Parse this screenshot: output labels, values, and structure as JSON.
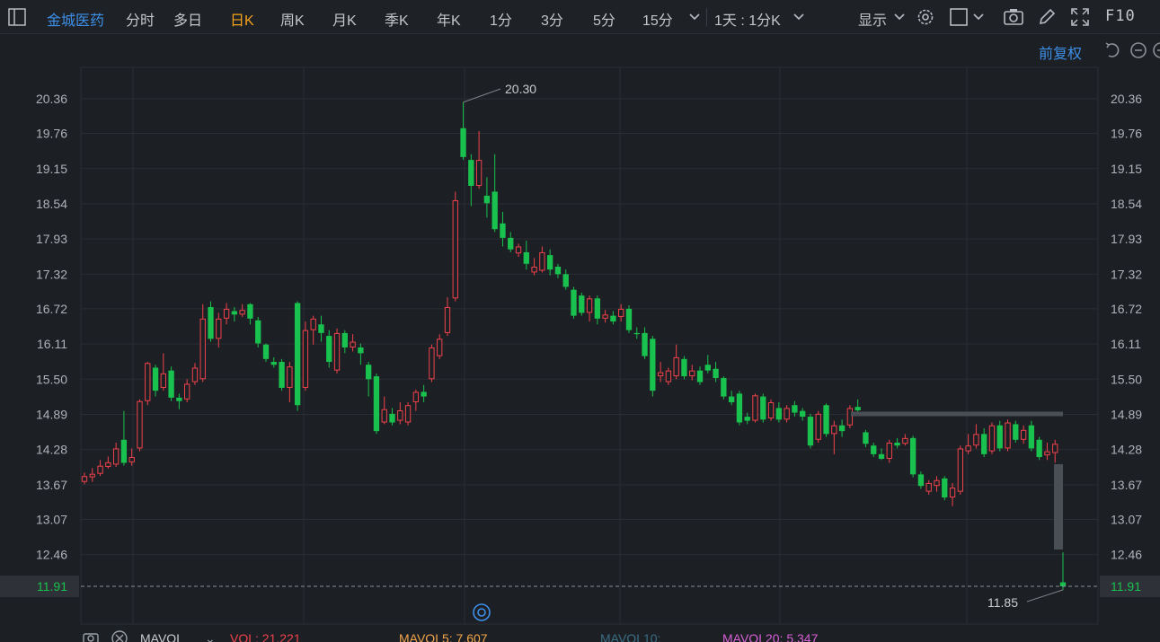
{
  "toolbar": {
    "stock_name": "金城医药",
    "tabs": [
      "分时",
      "多日",
      "日K",
      "周K",
      "月K",
      "季K",
      "年K",
      "1分",
      "3分",
      "5分",
      "15分"
    ],
    "active_tab": "日K",
    "interval_select": "1天 : 1分K",
    "display_label": "显示",
    "f10_label": "F10"
  },
  "adjust_label": "前复权",
  "bottom_bar": {
    "mavol_label": "MAVOL",
    "vol": "VOL: 21.221",
    "mavol5": "MAVOL5: 7.607",
    "mavol10": "MAVOL10:",
    "mavol20": "MAVOL20: 5.347"
  },
  "colors": {
    "up": "#f0424c",
    "down": "#19c14e",
    "active_tab": "#f7a21b",
    "link": "#3d8fe8",
    "mavol5": "#f2a54b",
    "mavol10": "#3a6f86",
    "mavol20": "#d660d6"
  },
  "chart_data": {
    "type": "candlestick",
    "y_ticks": [
      "20.36",
      "19.76",
      "19.15",
      "18.54",
      "17.93",
      "17.32",
      "16.72",
      "16.11",
      "15.50",
      "14.89",
      "14.28",
      "13.67",
      "13.07",
      "12.46"
    ],
    "last_price": "11.91",
    "high_annotation": "20.30",
    "low_annotation": "11.85",
    "ylim": [
      11.6,
      20.9
    ],
    "candles": [
      {
        "o": 13.72,
        "c": 13.82,
        "h": 13.88,
        "l": 13.68
      },
      {
        "o": 13.8,
        "c": 13.86,
        "h": 13.96,
        "l": 13.72
      },
      {
        "o": 13.86,
        "c": 14.0,
        "h": 14.1,
        "l": 13.82
      },
      {
        "o": 13.98,
        "c": 14.06,
        "h": 14.16,
        "l": 13.95
      },
      {
        "o": 14.02,
        "c": 14.3,
        "h": 14.4,
        "l": 13.98
      },
      {
        "o": 14.45,
        "c": 14.05,
        "h": 14.95,
        "l": 14.0
      },
      {
        "o": 14.06,
        "c": 14.15,
        "h": 14.3,
        "l": 14.0
      },
      {
        "o": 14.3,
        "c": 15.12,
        "h": 15.15,
        "l": 14.25
      },
      {
        "o": 15.12,
        "c": 15.78,
        "h": 15.8,
        "l": 15.05
      },
      {
        "o": 15.7,
        "c": 15.3,
        "h": 15.75,
        "l": 15.2
      },
      {
        "o": 15.35,
        "c": 15.6,
        "h": 15.95,
        "l": 15.3
      },
      {
        "o": 15.65,
        "c": 15.18,
        "h": 15.72,
        "l": 15.12
      },
      {
        "o": 15.18,
        "c": 15.12,
        "h": 15.25,
        "l": 14.98
      },
      {
        "o": 15.15,
        "c": 15.42,
        "h": 15.5,
        "l": 15.1
      },
      {
        "o": 15.45,
        "c": 15.7,
        "h": 15.78,
        "l": 15.4
      },
      {
        "o": 15.5,
        "c": 16.55,
        "h": 16.8,
        "l": 15.45
      },
      {
        "o": 16.75,
        "c": 16.2,
        "h": 16.85,
        "l": 16.15
      },
      {
        "o": 16.2,
        "c": 16.55,
        "h": 16.65,
        "l": 16.05
      },
      {
        "o": 16.55,
        "c": 16.72,
        "h": 16.82,
        "l": 16.45
      },
      {
        "o": 16.68,
        "c": 16.62,
        "h": 16.75,
        "l": 16.5
      },
      {
        "o": 16.62,
        "c": 16.7,
        "h": 16.8,
        "l": 16.58
      },
      {
        "o": 16.8,
        "c": 16.55,
        "h": 16.82,
        "l": 16.45
      },
      {
        "o": 16.52,
        "c": 16.12,
        "h": 16.58,
        "l": 16.05
      },
      {
        "o": 16.1,
        "c": 15.85,
        "h": 16.12,
        "l": 15.8
      },
      {
        "o": 15.8,
        "c": 15.75,
        "h": 15.88,
        "l": 15.7
      },
      {
        "o": 15.8,
        "c": 15.35,
        "h": 15.85,
        "l": 15.3
      },
      {
        "o": 15.35,
        "c": 15.72,
        "h": 15.8,
        "l": 15.1
      },
      {
        "o": 16.82,
        "c": 15.05,
        "h": 16.85,
        "l": 14.95
      },
      {
        "o": 15.35,
        "c": 16.35,
        "h": 16.5,
        "l": 15.3
      },
      {
        "o": 16.35,
        "c": 16.55,
        "h": 16.6,
        "l": 16.1
      },
      {
        "o": 16.45,
        "c": 16.3,
        "h": 16.6,
        "l": 16.15
      },
      {
        "o": 16.25,
        "c": 15.8,
        "h": 16.35,
        "l": 15.7
      },
      {
        "o": 15.65,
        "c": 16.3,
        "h": 16.38,
        "l": 15.6
      },
      {
        "o": 16.3,
        "c": 16.05,
        "h": 16.35,
        "l": 15.95
      },
      {
        "o": 16.05,
        "c": 16.15,
        "h": 16.28,
        "l": 15.98
      },
      {
        "o": 16.05,
        "c": 15.95,
        "h": 16.12,
        "l": 15.75
      },
      {
        "o": 15.75,
        "c": 15.5,
        "h": 15.8,
        "l": 15.2
      },
      {
        "o": 15.55,
        "c": 14.6,
        "h": 15.6,
        "l": 14.55
      },
      {
        "o": 14.75,
        "c": 14.98,
        "h": 15.2,
        "l": 14.72
      },
      {
        "o": 14.9,
        "c": 14.75,
        "h": 15.0,
        "l": 14.7
      },
      {
        "o": 14.78,
        "c": 14.96,
        "h": 15.1,
        "l": 14.72
      },
      {
        "o": 14.75,
        "c": 15.05,
        "h": 15.1,
        "l": 14.7
      },
      {
        "o": 15.1,
        "c": 15.28,
        "h": 15.32,
        "l": 14.95
      },
      {
        "o": 15.28,
        "c": 15.2,
        "h": 15.4,
        "l": 15.1
      },
      {
        "o": 15.5,
        "c": 16.05,
        "h": 16.1,
        "l": 15.45
      },
      {
        "o": 15.9,
        "c": 16.2,
        "h": 16.28,
        "l": 15.85
      },
      {
        "o": 16.3,
        "c": 16.75,
        "h": 16.92,
        "l": 16.25
      },
      {
        "o": 16.9,
        "c": 18.6,
        "h": 18.75,
        "l": 16.85
      },
      {
        "o": 19.85,
        "c": 19.35,
        "h": 20.3,
        "l": 19.3
      },
      {
        "o": 19.3,
        "c": 18.85,
        "h": 19.4,
        "l": 18.5
      },
      {
        "o": 18.85,
        "c": 19.3,
        "h": 19.8,
        "l": 18.8
      },
      {
        "o": 18.68,
        "c": 18.55,
        "h": 19.0,
        "l": 18.3
      },
      {
        "o": 18.75,
        "c": 18.1,
        "h": 19.4,
        "l": 18.05
      },
      {
        "o": 18.2,
        "c": 17.95,
        "h": 18.4,
        "l": 17.8
      },
      {
        "o": 17.95,
        "c": 17.75,
        "h": 18.05,
        "l": 17.7
      },
      {
        "o": 17.68,
        "c": 17.8,
        "h": 17.85,
        "l": 17.62
      },
      {
        "o": 17.7,
        "c": 17.5,
        "h": 17.9,
        "l": 17.4
      },
      {
        "o": 17.35,
        "c": 17.45,
        "h": 17.6,
        "l": 17.3
      },
      {
        "o": 17.38,
        "c": 17.7,
        "h": 17.8,
        "l": 17.35
      },
      {
        "o": 17.65,
        "c": 17.4,
        "h": 17.75,
        "l": 17.3
      },
      {
        "o": 17.45,
        "c": 17.32,
        "h": 17.5,
        "l": 17.25
      },
      {
        "o": 17.32,
        "c": 17.1,
        "h": 17.4,
        "l": 17.05
      },
      {
        "o": 17.05,
        "c": 16.6,
        "h": 17.1,
        "l": 16.55
      },
      {
        "o": 16.95,
        "c": 16.65,
        "h": 17.0,
        "l": 16.6
      },
      {
        "o": 16.65,
        "c": 16.9,
        "h": 16.95,
        "l": 16.5
      },
      {
        "o": 16.9,
        "c": 16.55,
        "h": 16.95,
        "l": 16.45
      },
      {
        "o": 16.55,
        "c": 16.62,
        "h": 16.7,
        "l": 16.48
      },
      {
        "o": 16.6,
        "c": 16.5,
        "h": 16.68,
        "l": 16.45
      },
      {
        "o": 16.58,
        "c": 16.72,
        "h": 16.8,
        "l": 16.5
      },
      {
        "o": 16.72,
        "c": 16.35,
        "h": 16.78,
        "l": 16.3
      },
      {
        "o": 16.3,
        "c": 16.28,
        "h": 16.4,
        "l": 16.2
      },
      {
        "o": 16.3,
        "c": 15.9,
        "h": 16.4,
        "l": 15.85
      },
      {
        "o": 16.2,
        "c": 15.3,
        "h": 16.25,
        "l": 15.2
      },
      {
        "o": 15.55,
        "c": 15.62,
        "h": 15.8,
        "l": 15.45
      },
      {
        "o": 15.45,
        "c": 15.65,
        "h": 15.7,
        "l": 15.4
      },
      {
        "o": 15.55,
        "c": 15.88,
        "h": 16.1,
        "l": 15.5
      },
      {
        "o": 15.85,
        "c": 15.55,
        "h": 15.9,
        "l": 15.5
      },
      {
        "o": 15.55,
        "c": 15.65,
        "h": 15.75,
        "l": 15.48
      },
      {
        "o": 15.65,
        "c": 15.45,
        "h": 15.72,
        "l": 15.4
      },
      {
        "o": 15.75,
        "c": 15.65,
        "h": 15.92,
        "l": 15.6
      },
      {
        "o": 15.68,
        "c": 15.52,
        "h": 15.8,
        "l": 15.45
      },
      {
        "o": 15.52,
        "c": 15.2,
        "h": 15.55,
        "l": 15.15
      },
      {
        "o": 15.2,
        "c": 15.1,
        "h": 15.3,
        "l": 15.05
      },
      {
        "o": 15.25,
        "c": 14.75,
        "h": 15.3,
        "l": 14.7
      },
      {
        "o": 14.85,
        "c": 14.78,
        "h": 14.92,
        "l": 14.72
      },
      {
        "o": 14.78,
        "c": 15.22,
        "h": 15.25,
        "l": 14.75
      },
      {
        "o": 15.2,
        "c": 14.8,
        "h": 15.25,
        "l": 14.75
      },
      {
        "o": 14.82,
        "c": 15.1,
        "h": 15.15,
        "l": 14.78
      },
      {
        "o": 15.0,
        "c": 14.8,
        "h": 15.1,
        "l": 14.75
      },
      {
        "o": 14.8,
        "c": 15.0,
        "h": 15.05,
        "l": 14.75
      },
      {
        "o": 15.05,
        "c": 14.92,
        "h": 15.12,
        "l": 14.85
      },
      {
        "o": 14.95,
        "c": 14.85,
        "h": 15.0,
        "l": 14.78
      },
      {
        "o": 14.85,
        "c": 14.35,
        "h": 14.9,
        "l": 14.3
      },
      {
        "o": 14.45,
        "c": 14.9,
        "h": 14.95,
        "l": 14.4
      },
      {
        "o": 15.05,
        "c": 14.55,
        "h": 15.08,
        "l": 14.5
      },
      {
        "o": 14.55,
        "c": 14.7,
        "h": 14.78,
        "l": 14.2
      },
      {
        "o": 14.7,
        "c": 14.6,
        "h": 14.8,
        "l": 14.5
      },
      {
        "o": 14.7,
        "c": 15.0,
        "h": 15.05,
        "l": 14.65
      },
      {
        "o": 15.02,
        "c": 14.96,
        "h": 15.15,
        "l": 14.9
      },
      {
        "o": 14.58,
        "c": 14.38,
        "h": 14.62,
        "l": 14.32
      },
      {
        "o": 14.35,
        "c": 14.2,
        "h": 14.4,
        "l": 14.15
      },
      {
        "o": 14.2,
        "c": 14.12,
        "h": 14.3,
        "l": 14.1
      },
      {
        "o": 14.12,
        "c": 14.4,
        "h": 14.45,
        "l": 14.05
      },
      {
        "o": 14.4,
        "c": 14.35,
        "h": 14.48,
        "l": 14.3
      },
      {
        "o": 14.38,
        "c": 14.48,
        "h": 14.55,
        "l": 14.35
      },
      {
        "o": 14.48,
        "c": 13.85,
        "h": 14.52,
        "l": 13.8
      },
      {
        "o": 13.85,
        "c": 13.65,
        "h": 13.9,
        "l": 13.6
      },
      {
        "o": 13.55,
        "c": 13.7,
        "h": 13.75,
        "l": 13.5
      },
      {
        "o": 13.65,
        "c": 13.75,
        "h": 13.82,
        "l": 13.55
      },
      {
        "o": 13.78,
        "c": 13.45,
        "h": 13.82,
        "l": 13.4
      },
      {
        "o": 13.45,
        "c": 13.62,
        "h": 13.7,
        "l": 13.3
      },
      {
        "o": 13.55,
        "c": 14.3,
        "h": 14.35,
        "l": 13.5
      },
      {
        "o": 14.25,
        "c": 14.35,
        "h": 14.55,
        "l": 14.2
      },
      {
        "o": 14.35,
        "c": 14.55,
        "h": 14.72,
        "l": 14.3
      },
      {
        "o": 14.55,
        "c": 14.2,
        "h": 14.65,
        "l": 14.15
      },
      {
        "o": 14.25,
        "c": 14.7,
        "h": 14.75,
        "l": 14.2
      },
      {
        "o": 14.7,
        "c": 14.3,
        "h": 14.78,
        "l": 14.25
      },
      {
        "o": 14.3,
        "c": 14.75,
        "h": 14.8,
        "l": 14.25
      },
      {
        "o": 14.72,
        "c": 14.45,
        "h": 14.78,
        "l": 14.4
      },
      {
        "o": 14.45,
        "c": 14.62,
        "h": 14.7,
        "l": 14.38
      },
      {
        "o": 14.7,
        "c": 14.3,
        "h": 14.78,
        "l": 14.25
      },
      {
        "o": 14.45,
        "c": 14.15,
        "h": 14.5,
        "l": 14.1
      },
      {
        "o": 14.18,
        "c": 14.25,
        "h": 14.4,
        "l": 14.1
      },
      {
        "o": 14.22,
        "c": 14.38,
        "h": 14.45,
        "l": 14.05
      },
      {
        "o": 11.98,
        "c": 11.91,
        "h": 12.5,
        "l": 11.85
      }
    ]
  }
}
